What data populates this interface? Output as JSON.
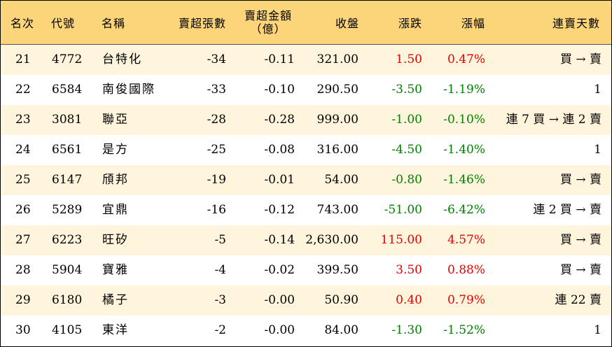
{
  "headers": {
    "rank": "名次",
    "code": "代號",
    "name": "名稱",
    "oversold_lots": "賣超張數",
    "oversold_amount_line1": "賣超金額",
    "oversold_amount_line2": "（億）",
    "close": "收盤",
    "change": "漲跌",
    "change_pct": "漲幅",
    "streak": "連賣天數"
  },
  "colors": {
    "header_bg": "#fcd57b",
    "stripe_bg": "#fff5dc",
    "up": "#e60000",
    "down": "#008000"
  },
  "rows": [
    {
      "rank": "21",
      "code": "4772",
      "name": "台特化",
      "oversold_lots": "-34",
      "oversold_amount": "-0.11",
      "close": "321.00",
      "change": "1.50",
      "change_pct": "0.47%",
      "direction": "up",
      "streak": "買 → 賣"
    },
    {
      "rank": "22",
      "code": "6584",
      "name": "南俊國際",
      "oversold_lots": "-33",
      "oversold_amount": "-0.10",
      "close": "290.50",
      "change": "-3.50",
      "change_pct": "-1.19%",
      "direction": "down",
      "streak": "1"
    },
    {
      "rank": "23",
      "code": "3081",
      "name": "聯亞",
      "oversold_lots": "-28",
      "oversold_amount": "-0.28",
      "close": "999.00",
      "change": "-1.00",
      "change_pct": "-0.10%",
      "direction": "down",
      "streak": "連 7 買 → 連 2 賣"
    },
    {
      "rank": "24",
      "code": "6561",
      "name": "是方",
      "oversold_lots": "-25",
      "oversold_amount": "-0.08",
      "close": "316.00",
      "change": "-4.50",
      "change_pct": "-1.40%",
      "direction": "down",
      "streak": "1"
    },
    {
      "rank": "25",
      "code": "6147",
      "name": "頎邦",
      "oversold_lots": "-19",
      "oversold_amount": "-0.01",
      "close": "54.00",
      "change": "-0.80",
      "change_pct": "-1.46%",
      "direction": "down",
      "streak": "買 → 賣"
    },
    {
      "rank": "26",
      "code": "5289",
      "name": "宜鼎",
      "oversold_lots": "-16",
      "oversold_amount": "-0.12",
      "close": "743.00",
      "change": "-51.00",
      "change_pct": "-6.42%",
      "direction": "down",
      "streak": "連 2 買 → 賣"
    },
    {
      "rank": "27",
      "code": "6223",
      "name": "旺矽",
      "oversold_lots": "-5",
      "oversold_amount": "-0.14",
      "close": "2,630.00",
      "change": "115.00",
      "change_pct": "4.57%",
      "direction": "up",
      "streak": "買 → 賣"
    },
    {
      "rank": "28",
      "code": "5904",
      "name": "寶雅",
      "oversold_lots": "-4",
      "oversold_amount": "-0.02",
      "close": "399.50",
      "change": "3.50",
      "change_pct": "0.88%",
      "direction": "up",
      "streak": "買 → 賣"
    },
    {
      "rank": "29",
      "code": "6180",
      "name": "橘子",
      "oversold_lots": "-3",
      "oversold_amount": "-0.00",
      "close": "50.90",
      "change": "0.40",
      "change_pct": "0.79%",
      "direction": "up",
      "streak": "連 22 賣"
    },
    {
      "rank": "30",
      "code": "4105",
      "name": "東洋",
      "oversold_lots": "-2",
      "oversold_amount": "-0.00",
      "close": "84.00",
      "change": "-1.30",
      "change_pct": "-1.52%",
      "direction": "down",
      "streak": "1"
    }
  ]
}
